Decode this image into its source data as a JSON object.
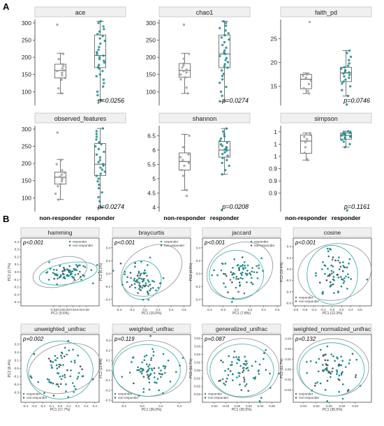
{
  "panels": {
    "a_label": "A",
    "b_label": "B"
  },
  "colors": {
    "teal": "#1b8a8c",
    "gray_point": "#9e9e9e",
    "box_stroke": "#555555",
    "strip_fill": "#f0f0f0",
    "strip_stroke": "#bbbbbb",
    "ellipse_gray": "#9a9a9a",
    "ellipse_teal": "#3fb5b0"
  },
  "chart_data": [
    {
      "type": "box",
      "title": "ace",
      "categories": [
        "non-responder",
        "responder"
      ],
      "ylim": [
        60,
        310
      ],
      "yticks": [
        "100",
        "150",
        "200",
        "250",
        "300"
      ],
      "annotation": "p=0.0256",
      "series": [
        {
          "name": "non-responder",
          "box": {
            "min": 95,
            "q1": 140,
            "median": 162,
            "q3": 180,
            "max": 212
          },
          "points": [
            95,
            110,
            135,
            140,
            148,
            155,
            160,
            162,
            168,
            175,
            180,
            195,
            210,
            295
          ]
        },
        {
          "name": "responder",
          "box": {
            "min": 75,
            "q1": 170,
            "median": 205,
            "q3": 265,
            "max": 305
          },
          "points": [
            75,
            90,
            100,
            115,
            125,
            135,
            145,
            150,
            160,
            168,
            172,
            178,
            185,
            190,
            195,
            200,
            205,
            210,
            215,
            222,
            230,
            240,
            248,
            255,
            262,
            268,
            275,
            282,
            290,
            300,
            305
          ]
        }
      ]
    },
    {
      "type": "box",
      "title": "chao1",
      "categories": [
        "non-responder",
        "responder"
      ],
      "ylim": [
        60,
        310
      ],
      "yticks": [
        "100",
        "150",
        "200",
        "250",
        "300"
      ],
      "annotation": "p=0.0274",
      "series": [
        {
          "name": "non-responder",
          "box": {
            "min": 95,
            "q1": 142,
            "median": 162,
            "q3": 182,
            "max": 212
          },
          "points": [
            95,
            112,
            136,
            142,
            150,
            156,
            160,
            164,
            170,
            176,
            182,
            196,
            210,
            295
          ]
        },
        {
          "name": "responder",
          "box": {
            "min": 72,
            "q1": 170,
            "median": 210,
            "q3": 265,
            "max": 305
          },
          "points": [
            72,
            88,
            100,
            114,
            126,
            136,
            146,
            152,
            162,
            170,
            174,
            180,
            186,
            192,
            198,
            204,
            210,
            214,
            220,
            228,
            236,
            244,
            252,
            258,
            264,
            270,
            278,
            285,
            292,
            300,
            305
          ]
        }
      ]
    },
    {
      "type": "box",
      "title": "faith_pd",
      "categories": [
        "non-responder",
        "responder"
      ],
      "ylim": [
        11,
        29
      ],
      "yticks": [
        "15",
        "20",
        "25"
      ],
      "annotation": "p=0.0746",
      "series": [
        {
          "name": "non-responder",
          "box": {
            "min": 13.5,
            "q1": 14.5,
            "median": 16.5,
            "q3": 17.5,
            "max": 17.8
          },
          "points": [
            13.5,
            14.0,
            14.6,
            15.5,
            16.2,
            16.8,
            17.2,
            17.5,
            17.6,
            28.5
          ]
        },
        {
          "name": "responder",
          "box": {
            "min": 13.0,
            "q1": 16.0,
            "median": 17.8,
            "q3": 19.0,
            "max": 22.5
          },
          "points": [
            11.2,
            13.0,
            14.2,
            15.0,
            15.6,
            16.0,
            16.4,
            16.8,
            17.1,
            17.4,
            17.7,
            17.9,
            18.1,
            18.4,
            18.7,
            19.0,
            19.3,
            19.8,
            20.5,
            21.2,
            22.0,
            22.5
          ]
        }
      ]
    },
    {
      "type": "box",
      "title": "observed_features",
      "categories": [
        "non-responder",
        "responder"
      ],
      "ylim": [
        60,
        310
      ],
      "yticks": [
        "100",
        "150",
        "200",
        "250",
        "300"
      ],
      "annotation": "p=0.0274",
      "series": [
        {
          "name": "non-responder",
          "box": {
            "min": 95,
            "q1": 140,
            "median": 160,
            "q3": 175,
            "max": 212
          },
          "points": [
            95,
            112,
            134,
            140,
            148,
            154,
            158,
            162,
            168,
            174,
            180,
            198,
            210,
            290
          ]
        },
        {
          "name": "responder",
          "box": {
            "min": 72,
            "q1": 165,
            "median": 198,
            "q3": 258,
            "max": 302
          },
          "points": [
            72,
            90,
            102,
            116,
            128,
            138,
            148,
            156,
            164,
            170,
            176,
            182,
            188,
            194,
            198,
            204,
            210,
            218,
            226,
            234,
            242,
            250,
            256,
            262,
            270,
            278,
            286,
            294,
            302
          ]
        }
      ]
    },
    {
      "type": "box",
      "title": "shannon",
      "categories": [
        "non-responder",
        "responder"
      ],
      "ylim": [
        3.85,
        6.85
      ],
      "yticks": [
        "4",
        "4.5",
        "5",
        "5.5",
        "6",
        "6.5"
      ],
      "annotation": "p=0.0208",
      "series": [
        {
          "name": "non-responder",
          "box": {
            "min": 4.6,
            "q1": 5.3,
            "median": 5.6,
            "q3": 5.9,
            "max": 6.55
          },
          "points": [
            4.4,
            4.6,
            5.1,
            5.3,
            5.45,
            5.55,
            5.65,
            5.75,
            5.85,
            6.1,
            6.5
          ]
        },
        {
          "name": "responder",
          "box": {
            "min": 5.15,
            "q1": 5.75,
            "median": 6.0,
            "q3": 6.3,
            "max": 6.75
          },
          "points": [
            3.9,
            5.15,
            5.3,
            5.45,
            5.55,
            5.65,
            5.72,
            5.8,
            5.86,
            5.92,
            5.98,
            6.02,
            6.06,
            6.1,
            6.15,
            6.2,
            6.26,
            6.32,
            6.4,
            6.48,
            6.56,
            6.65,
            6.75
          ]
        }
      ]
    },
    {
      "type": "box",
      "title": "simpson",
      "categories": [
        "non-responder",
        "responder"
      ],
      "ylim": [
        0.87,
        1.01
      ],
      "yticks": [
        "0.9",
        "0.9",
        "0.9",
        "1",
        "1",
        "1"
      ],
      "annotation": "p=0.1161",
      "series": [
        {
          "name": "non-responder",
          "box": {
            "min": 0.954,
            "q1": 0.965,
            "median": 0.985,
            "q3": 0.995,
            "max": 0.998
          },
          "points": [
            0.954,
            0.956,
            0.966,
            0.975,
            0.983,
            0.988,
            0.992,
            0.995,
            0.998
          ]
        },
        {
          "name": "responder",
          "box": {
            "min": 0.975,
            "q1": 0.988,
            "median": 0.994,
            "q3": 0.998,
            "max": 1.001
          },
          "points": [
            0.872,
            0.975,
            0.98,
            0.984,
            0.987,
            0.989,
            0.991,
            0.992,
            0.993,
            0.994,
            0.995,
            0.996,
            0.997,
            0.998,
            0.999,
            1.0,
            1.001
          ]
        }
      ]
    },
    {
      "type": "scatter",
      "title": "hamming",
      "annotation": "p<0.001",
      "xlabel": "PC1 (5.6%)",
      "ylabel": "PC2 (3.7%)",
      "xlim": [
        -0.14,
        0.1
      ],
      "ylim": [
        -0.45,
        0.45
      ],
      "xticks": [
        "-0.04",
        "-0.02",
        "0.00",
        "0.02",
        "0.04",
        "0.06"
      ],
      "xtickvals": [
        -0.04,
        -0.02,
        0.0,
        0.02,
        0.04,
        0.06
      ],
      "yticks": [
        "0.4",
        "0.3",
        "0.2",
        "0.1",
        "0.0",
        "-0.1",
        "-0.2",
        "-0.3",
        "-0.4"
      ],
      "ytickvals": [
        0.4,
        0.3,
        0.2,
        0.1,
        0.0,
        -0.1,
        -0.2,
        -0.3,
        -0.4
      ],
      "legend_position": "top-right",
      "legend": [
        "responder",
        "non-responder"
      ],
      "ellipses": [
        {
          "series": "responder",
          "cx": -0.02,
          "cy": 0.0,
          "rx": 0.085,
          "ry": 0.19,
          "rot": -15
        },
        {
          "series": "non-responder",
          "cx": 0.005,
          "cy": -0.02,
          "rx": 0.09,
          "ry": 0.14,
          "rot": -10
        }
      ]
    },
    {
      "type": "scatter",
      "title": "braycurtis",
      "annotation": "p<0.001",
      "xlabel": "PC1 (10.0%)",
      "ylabel": "PC2 (8.1%)",
      "xlim": [
        -0.5,
        0.7
      ],
      "ylim": [
        -0.5,
        0.55
      ],
      "xticks": [
        "-0.4",
        "-0.2",
        "0.0",
        "0.2",
        "0.4",
        "0.6"
      ],
      "xtickvals": [
        -0.4,
        -0.2,
        0.0,
        0.2,
        0.4,
        0.6
      ],
      "yticks": [
        "0.4",
        "0.2",
        "0.0",
        "-0.2",
        "-0.4"
      ],
      "ytickvals": [
        0.4,
        0.2,
        0.0,
        -0.2,
        -0.4
      ],
      "legend_position": "top-right",
      "legend": [
        "responder",
        "non-responder"
      ],
      "ellipses": [
        {
          "series": "responder",
          "cx": 0.1,
          "cy": 0.05,
          "rx": 0.5,
          "ry": 0.36,
          "rot": -30
        },
        {
          "series": "non-responder",
          "cx": -0.05,
          "cy": -0.1,
          "rx": 0.3,
          "ry": 0.3,
          "rot": 0
        }
      ]
    },
    {
      "type": "scatter",
      "title": "jaccard",
      "annotation": "p<0.001",
      "xlabel": "PC1 (7.8%)",
      "ylabel": "PC2 (3.6%)",
      "xlim": [
        -0.5,
        0.65
      ],
      "ylim": [
        -0.5,
        0.55
      ],
      "xticks": [
        "-0.4",
        "-0.2",
        "0.0",
        "0.2",
        "0.4",
        "0.6"
      ],
      "xtickvals": [
        -0.4,
        -0.2,
        0.0,
        0.2,
        0.4,
        0.6
      ],
      "yticks": [
        "0.4",
        "0.2",
        "0.0",
        "-0.2",
        "-0.4"
      ],
      "ytickvals": [
        0.4,
        0.2,
        0.0,
        -0.2,
        -0.4
      ],
      "legend_position": "top-right",
      "legend": [
        "responder",
        "non-responder"
      ],
      "ellipses": [
        {
          "series": "responder",
          "cx": 0.05,
          "cy": 0.05,
          "rx": 0.5,
          "ry": 0.42,
          "rot": -25
        },
        {
          "series": "non-responder",
          "cx": 0.0,
          "cy": -0.02,
          "rx": 0.4,
          "ry": 0.38,
          "rot": 0
        }
      ]
    },
    {
      "type": "scatter",
      "title": "cosine",
      "annotation": "p<0.001",
      "xlabel": "PC1 (12.3%)",
      "ylabel": "PC2 (10.4%)",
      "xlim": [
        -0.85,
        0.85
      ],
      "ylim": [
        -0.65,
        0.55
      ],
      "xticks": [
        "-0.8",
        "-0.6",
        "-0.4",
        "-0.2",
        "0.0",
        "0.2",
        "0.4",
        "0.6"
      ],
      "xtickvals": [
        -0.8,
        -0.6,
        -0.4,
        -0.2,
        0.0,
        0.2,
        0.4,
        0.6
      ],
      "yticks": [
        "0.4",
        "0.2",
        "0.0",
        "-0.2",
        "-0.4",
        "-0.6"
      ],
      "ytickvals": [
        0.4,
        0.2,
        0.0,
        -0.2,
        -0.4,
        -0.6
      ],
      "legend_position": "bottom-left",
      "legend": [
        "responder",
        "non-responder"
      ],
      "ellipses": [
        {
          "series": "responder",
          "cx": 0.05,
          "cy": -0.05,
          "rx": 0.8,
          "ry": 0.5,
          "rot": -10
        },
        {
          "series": "non-responder",
          "cx": 0.0,
          "cy": -0.1,
          "rx": 0.55,
          "ry": 0.52,
          "rot": 0
        }
      ]
    },
    {
      "type": "scatter",
      "title": "unweighted_unifrac",
      "annotation": "p=0.002",
      "xlabel": "PC1 (17.7%)",
      "ylabel": "PC2 (8.4%)",
      "xlim": [
        -0.45,
        0.45
      ],
      "ylim": [
        -0.42,
        0.42
      ],
      "xticks": [
        "-0.4",
        "-0.3",
        "-0.2",
        "-0.1",
        "0.0",
        "0.1",
        "0.2",
        "0.3",
        "0.4"
      ],
      "xtickvals": [
        -0.4,
        -0.3,
        -0.2,
        -0.1,
        0.0,
        0.1,
        0.2,
        0.3,
        0.4
      ],
      "yticks": [
        "0.3",
        "0.2",
        "0.1",
        "0.0",
        "-0.1",
        "-0.2",
        "-0.3"
      ],
      "ytickvals": [
        0.3,
        0.2,
        0.1,
        0.0,
        -0.1,
        -0.2,
        -0.3
      ],
      "legend_position": "bottom-left",
      "legend": [
        "responder",
        "non-responder"
      ],
      "ellipses": [
        {
          "series": "responder",
          "cx": 0.05,
          "cy": 0.0,
          "rx": 0.42,
          "ry": 0.3,
          "rot": -15
        },
        {
          "series": "non-responder",
          "cx": 0.0,
          "cy": -0.02,
          "rx": 0.38,
          "ry": 0.36,
          "rot": 0
        }
      ]
    },
    {
      "type": "scatter",
      "title": "weighted_unifrac",
      "annotation": "p=0.119",
      "xlabel": "PC1 (36.0%)",
      "ylabel": "PC2 (11.6%)",
      "xlim": [
        -0.32,
        0.52
      ],
      "ylim": [
        -0.32,
        0.36
      ],
      "xticks": [
        "-0.2",
        "0.0",
        "0.2",
        "0.4"
      ],
      "xtickvals": [
        -0.2,
        0.0,
        0.2,
        0.4
      ],
      "yticks": [
        "0.3",
        "0.2",
        "0.1",
        "0.0",
        "-0.1",
        "-0.2",
        "-0.3"
      ],
      "ytickvals": [
        0.3,
        0.2,
        0.1,
        0.0,
        -0.1,
        -0.2,
        -0.3
      ],
      "legend_position": "bottom-left",
      "legend": [
        "responder",
        "non-responder"
      ],
      "ellipses": [
        {
          "series": "responder",
          "cx": 0.08,
          "cy": 0.02,
          "rx": 0.4,
          "ry": 0.28,
          "rot": 0
        },
        {
          "series": "non-responder",
          "cx": 0.05,
          "cy": 0.0,
          "rx": 0.36,
          "ry": 0.26,
          "rot": 0
        }
      ]
    },
    {
      "type": "scatter",
      "title": "generalized_unifrac",
      "annotation": "p=0.087",
      "xlabel": "PC1 (35.5%)",
      "ylabel": "PC2 (11.7%)",
      "xlim": [
        -0.06,
        0.075
      ],
      "ylim": [
        -0.04,
        0.045
      ],
      "xticks": [
        "-0.04",
        "-0.02",
        "0.00",
        "0.02",
        "0.04",
        "0.06"
      ],
      "xtickvals": [
        -0.04,
        -0.02,
        0.0,
        0.02,
        0.04,
        0.06
      ],
      "yticks": [
        "0.04",
        "0.03",
        "0.02",
        "0.01",
        "0.00",
        "-0.01",
        "-0.02",
        "-0.03"
      ],
      "ytickvals": [
        0.04,
        0.03,
        0.02,
        0.01,
        0.0,
        -0.01,
        -0.02,
        -0.03
      ],
      "legend_position": "bottom-left",
      "legend": [
        "responder",
        "non-responder"
      ],
      "ellipses": [
        {
          "series": "responder",
          "cx": 0.01,
          "cy": 0.003,
          "rx": 0.062,
          "ry": 0.037,
          "rot": 0
        },
        {
          "series": "non-responder",
          "cx": 0.008,
          "cy": 0.0,
          "rx": 0.055,
          "ry": 0.033,
          "rot": 0
        }
      ]
    },
    {
      "type": "scatter",
      "title": "weighted_normalized_unifrac",
      "annotation": "p=0.132",
      "xlabel": "PC1 (35.5%)",
      "ylabel": "PC2 (11.7%)",
      "xlim": [
        -0.055,
        0.065
      ],
      "ylim": [
        -0.032,
        0.034
      ],
      "xticks": [
        "-0.04",
        "-0.02",
        "0.00",
        "0.02",
        "0.04"
      ],
      "xtickvals": [
        -0.04,
        -0.02,
        0.0,
        0.02,
        0.04
      ],
      "yticks": [
        "0.03",
        "0.02",
        "0.01",
        "0.00",
        "-0.01",
        "-0.02"
      ],
      "ytickvals": [
        0.03,
        0.02,
        0.01,
        0.0,
        -0.01,
        -0.02
      ],
      "legend_position": "bottom-left",
      "legend": [
        "responder",
        "non-responder"
      ],
      "ellipses": [
        {
          "series": "responder",
          "cx": 0.006,
          "cy": 0.002,
          "rx": 0.055,
          "ry": 0.028,
          "rot": 0
        },
        {
          "series": "non-responder",
          "cx": 0.004,
          "cy": 0.0,
          "rx": 0.05,
          "ry": 0.026,
          "rot": 0
        }
      ]
    }
  ]
}
